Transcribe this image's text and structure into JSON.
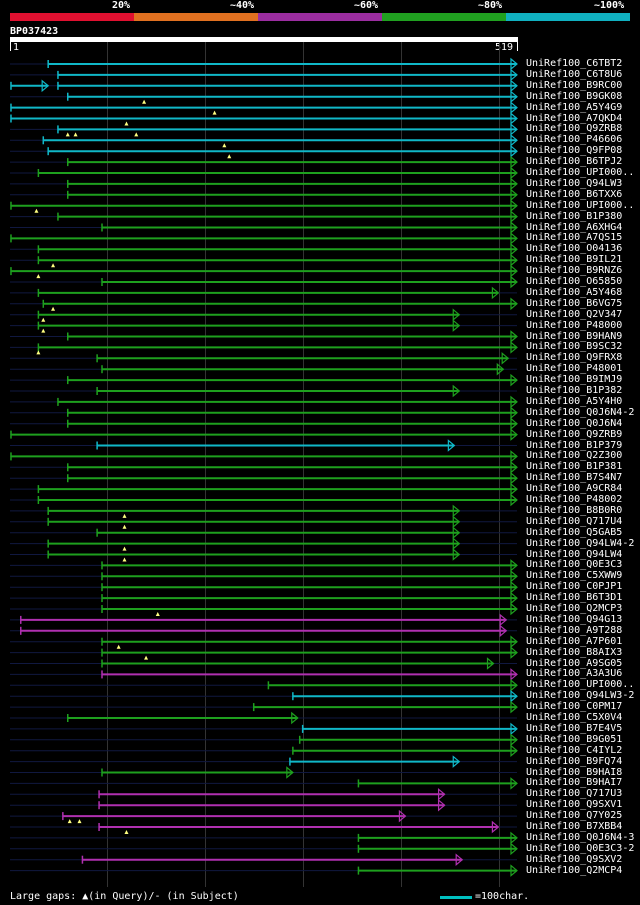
{
  "legend": {
    "percents": [
      "20%",
      "~40%",
      "~60%",
      "~80%",
      "~100%"
    ],
    "colors": [
      "#e01030",
      "#e07020",
      "#9b2da0",
      "#20a020",
      "#10b0c0"
    ]
  },
  "query": {
    "id": "BP037423",
    "start": "1",
    "end": "519",
    "length": 519
  },
  "footer": {
    "gaps": "Large gaps: ▲(in Query)/- (in Subject)",
    "scale": "=100char."
  },
  "hits": [
    {
      "name": "UniRef100_C6TBT2",
      "color": "cyan",
      "s": 40,
      "e": 519,
      "arrow": true,
      "marks": []
    },
    {
      "name": "UniRef100_C6T8U6",
      "color": "cyan",
      "s": 50,
      "e": 519,
      "arrow": true,
      "marks": []
    },
    {
      "name": "UniRef100_B9RC00",
      "color": "cyan",
      "s": 2,
      "e": 40,
      "arrow": true,
      "seg2": [
        50,
        519
      ],
      "marks": []
    },
    {
      "name": "UniRef100_B9GK08",
      "color": "cyan",
      "s": 60,
      "e": 519,
      "arrow": true,
      "marks": [
        138
      ]
    },
    {
      "name": "UniRef100_A5Y4G9",
      "color": "cyan",
      "s": 2,
      "e": 519,
      "arrow": true,
      "marks": [
        210
      ]
    },
    {
      "name": "UniRef100_A7QKD4",
      "color": "cyan",
      "s": 2,
      "e": 519,
      "arrow": true,
      "marks": [
        120
      ]
    },
    {
      "name": "UniRef100_Q9ZRB8",
      "color": "cyan",
      "s": 50,
      "e": 519,
      "arrow": true,
      "marks": [
        60,
        68,
        130
      ]
    },
    {
      "name": "UniRef100_P46606",
      "color": "cyan",
      "s": 35,
      "e": 519,
      "arrow": true,
      "marks": [
        220
      ]
    },
    {
      "name": "UniRef100_Q9FP08",
      "color": "cyan",
      "s": 40,
      "e": 519,
      "arrow": true,
      "marks": [
        225
      ]
    },
    {
      "name": "UniRef100_B6TPJ2",
      "color": "green",
      "s": 60,
      "e": 519,
      "arrow": true,
      "marks": []
    },
    {
      "name": "UniRef100_UPI000..",
      "color": "green",
      "s": 30,
      "e": 519,
      "arrow": true,
      "marks": []
    },
    {
      "name": "UniRef100_Q94LW3",
      "color": "green",
      "s": 60,
      "e": 519,
      "arrow": true,
      "marks": []
    },
    {
      "name": "UniRef100_B6TXX6",
      "color": "green",
      "s": 60,
      "e": 519,
      "arrow": true,
      "marks": []
    },
    {
      "name": "UniRef100_UPI000..",
      "color": "green",
      "s": 2,
      "e": 519,
      "arrow": true,
      "marks": [
        28
      ]
    },
    {
      "name": "UniRef100_B1P380",
      "color": "green",
      "s": 50,
      "e": 519,
      "arrow": true,
      "marks": []
    },
    {
      "name": "UniRef100_A6XHG4",
      "color": "green",
      "s": 95,
      "e": 519,
      "arrow": true,
      "marks": []
    },
    {
      "name": "UniRef100_A7QS15",
      "color": "green",
      "s": 2,
      "e": 519,
      "arrow": true,
      "marks": []
    },
    {
      "name": "UniRef100_O04136",
      "color": "green",
      "s": 30,
      "e": 519,
      "arrow": true,
      "marks": []
    },
    {
      "name": "UniRef100_B9IL21",
      "color": "green",
      "s": 30,
      "e": 519,
      "arrow": true,
      "marks": [
        45
      ]
    },
    {
      "name": "UniRef100_B9RNZ6",
      "color": "green",
      "s": 2,
      "e": 519,
      "arrow": true,
      "marks": [
        30
      ]
    },
    {
      "name": "UniRef100_O65850",
      "color": "green",
      "s": 95,
      "e": 519,
      "arrow": true,
      "marks": []
    },
    {
      "name": "UniRef100_A5Y468",
      "color": "green",
      "s": 30,
      "e": 500,
      "arrow": true,
      "marks": []
    },
    {
      "name": "UniRef100_B6VG75",
      "color": "green",
      "s": 35,
      "e": 519,
      "arrow": true,
      "marks": [
        45
      ]
    },
    {
      "name": "UniRef100_Q2V347",
      "color": "green",
      "s": 30,
      "e": 460,
      "arrow": true,
      "marks": [
        35
      ]
    },
    {
      "name": "UniRef100_P48000",
      "color": "green",
      "s": 30,
      "e": 460,
      "arrow": true,
      "marks": [
        35
      ]
    },
    {
      "name": "UniRef100_B9HAN9",
      "color": "green",
      "s": 60,
      "e": 519,
      "arrow": true,
      "marks": []
    },
    {
      "name": "UniRef100_B9SC32",
      "color": "green",
      "s": 30,
      "e": 519,
      "arrow": true,
      "marks": [
        30
      ]
    },
    {
      "name": "UniRef100_Q9FRX8",
      "color": "green",
      "s": 90,
      "e": 510,
      "arrow": true,
      "marks": []
    },
    {
      "name": "UniRef100_P48001",
      "color": "green",
      "s": 95,
      "e": 505,
      "arrow": true,
      "marks": []
    },
    {
      "name": "UniRef100_B9IMJ9",
      "color": "green",
      "s": 60,
      "e": 519,
      "arrow": true,
      "marks": []
    },
    {
      "name": "UniRef100_B1P382",
      "color": "green",
      "s": 90,
      "e": 460,
      "arrow": true,
      "marks": []
    },
    {
      "name": "UniRef100_A5Y4H0",
      "color": "green",
      "s": 50,
      "e": 519,
      "arrow": true,
      "marks": []
    },
    {
      "name": "UniRef100_Q0J6N4-2",
      "color": "green",
      "s": 60,
      "e": 519,
      "arrow": true,
      "marks": []
    },
    {
      "name": "UniRef100_Q0J6N4",
      "color": "green",
      "s": 60,
      "e": 519,
      "arrow": true,
      "marks": []
    },
    {
      "name": "UniRef100_Q9ZRB9",
      "color": "green",
      "s": 2,
      "e": 519,
      "arrow": true,
      "marks": []
    },
    {
      "name": "UniRef100_B1P379",
      "color": "cyan",
      "s": 90,
      "e": 455,
      "arrow": true,
      "marks": []
    },
    {
      "name": "UniRef100_Q2Z300",
      "color": "green",
      "s": 2,
      "e": 519,
      "arrow": true,
      "marks": []
    },
    {
      "name": "UniRef100_B1P381",
      "color": "green",
      "s": 60,
      "e": 519,
      "arrow": true,
      "marks": []
    },
    {
      "name": "UniRef100_B7S4N7",
      "color": "green",
      "s": 60,
      "e": 519,
      "arrow": true,
      "marks": []
    },
    {
      "name": "UniRef100_A9CR84",
      "color": "green",
      "s": 30,
      "e": 519,
      "arrow": true,
      "marks": []
    },
    {
      "name": "UniRef100_P48002",
      "color": "green",
      "s": 30,
      "e": 519,
      "arrow": true,
      "marks": []
    },
    {
      "name": "UniRef100_B8B0R0",
      "color": "green",
      "s": 40,
      "e": 460,
      "arrow": true,
      "marks": [
        118
      ]
    },
    {
      "name": "UniRef100_Q717U4",
      "color": "green",
      "s": 40,
      "e": 460,
      "arrow": true,
      "marks": [
        118
      ]
    },
    {
      "name": "UniRef100_Q5GAB5",
      "color": "green",
      "s": 90,
      "e": 460,
      "arrow": true,
      "marks": []
    },
    {
      "name": "UniRef100_Q94LW4-2",
      "color": "green",
      "s": 40,
      "e": 460,
      "arrow": true,
      "marks": [
        118
      ]
    },
    {
      "name": "UniRef100_Q94LW4",
      "color": "green",
      "s": 40,
      "e": 460,
      "arrow": true,
      "marks": [
        118
      ]
    },
    {
      "name": "UniRef100_Q0E3C3",
      "color": "green",
      "s": 95,
      "e": 519,
      "arrow": true,
      "marks": []
    },
    {
      "name": "UniRef100_C5XWW9",
      "color": "green",
      "s": 95,
      "e": 519,
      "arrow": true,
      "marks": []
    },
    {
      "name": "UniRef100_C0PJP1",
      "color": "green",
      "s": 95,
      "e": 519,
      "arrow": true,
      "marks": []
    },
    {
      "name": "UniRef100_B6T3D1",
      "color": "green",
      "s": 95,
      "e": 519,
      "arrow": true,
      "marks": []
    },
    {
      "name": "UniRef100_Q2MCP3",
      "color": "green",
      "s": 95,
      "e": 519,
      "arrow": true,
      "marks": [
        152
      ]
    },
    {
      "name": "UniRef100_Q94G13",
      "color": "purple",
      "s": 12,
      "e": 508,
      "arrow": true,
      "marks": []
    },
    {
      "name": "UniRef100_A9T288",
      "color": "purple",
      "s": 12,
      "e": 508,
      "arrow": true,
      "marks": []
    },
    {
      "name": "UniRef100_A7P601",
      "color": "green",
      "s": 95,
      "e": 519,
      "arrow": true,
      "marks": [
        112
      ]
    },
    {
      "name": "UniRef100_B8AIX3",
      "color": "green",
      "s": 95,
      "e": 519,
      "arrow": true,
      "marks": [
        140
      ]
    },
    {
      "name": "UniRef100_A9SG05",
      "color": "green",
      "s": 95,
      "e": 495,
      "arrow": true,
      "marks": []
    },
    {
      "name": "UniRef100_A3A3U6",
      "color": "purple",
      "s": 95,
      "e": 519,
      "arrow": true,
      "marks": []
    },
    {
      "name": "UniRef100_UPI000..",
      "color": "green",
      "s": 265,
      "e": 519,
      "arrow": true,
      "marks": []
    },
    {
      "name": "UniRef100_Q94LW3-2",
      "color": "cyan",
      "s": 290,
      "e": 519,
      "arrow": true,
      "marks": []
    },
    {
      "name": "UniRef100_C0PM17",
      "color": "green",
      "s": 250,
      "e": 519,
      "arrow": true,
      "marks": []
    },
    {
      "name": "UniRef100_C5X0V4",
      "color": "green",
      "s": 60,
      "e": 295,
      "arrow": true,
      "marks": []
    },
    {
      "name": "UniRef100_B7E4V5",
      "color": "cyan",
      "s": 300,
      "e": 519,
      "arrow": true,
      "marks": []
    },
    {
      "name": "UniRef100_B9G051",
      "color": "green",
      "s": 297,
      "e": 519,
      "arrow": true,
      "marks": []
    },
    {
      "name": "UniRef100_C4IYL2",
      "color": "green",
      "s": 290,
      "e": 519,
      "arrow": true,
      "marks": []
    },
    {
      "name": "UniRef100_B9FQ74",
      "color": "cyan",
      "s": 287,
      "e": 460,
      "arrow": true,
      "marks": []
    },
    {
      "name": "UniRef100_B9HAI8",
      "color": "green",
      "s": 95,
      "e": 290,
      "arrow": true,
      "marks": []
    },
    {
      "name": "UniRef100_B9HAI7",
      "color": "green",
      "s": 357,
      "e": 519,
      "arrow": true,
      "marks": []
    },
    {
      "name": "UniRef100_Q717U3",
      "color": "purple",
      "s": 92,
      "e": 445,
      "arrow": true,
      "marks": []
    },
    {
      "name": "UniRef100_Q9SXV1",
      "color": "purple",
      "s": 92,
      "e": 445,
      "arrow": true,
      "marks": []
    },
    {
      "name": "UniRef100_Q7Y025",
      "color": "purple",
      "s": 55,
      "e": 405,
      "arrow": true,
      "marks": [
        62,
        72
      ]
    },
    {
      "name": "UniRef100_B7XBB4",
      "color": "purple",
      "s": 92,
      "e": 500,
      "arrow": true,
      "marks": [
        120
      ]
    },
    {
      "name": "UniRef100_Q0J6N4-3",
      "color": "green",
      "s": 357,
      "e": 519,
      "arrow": true,
      "marks": []
    },
    {
      "name": "UniRef100_Q0E3C3-2",
      "color": "green",
      "s": 357,
      "e": 519,
      "arrow": true,
      "marks": []
    },
    {
      "name": "UniRef100_Q9SXV2",
      "color": "purple",
      "s": 75,
      "e": 463,
      "arrow": true,
      "marks": []
    },
    {
      "name": "UniRef100_Q2MCP4",
      "color": "green",
      "s": 357,
      "e": 519,
      "arrow": true,
      "marks": []
    }
  ]
}
